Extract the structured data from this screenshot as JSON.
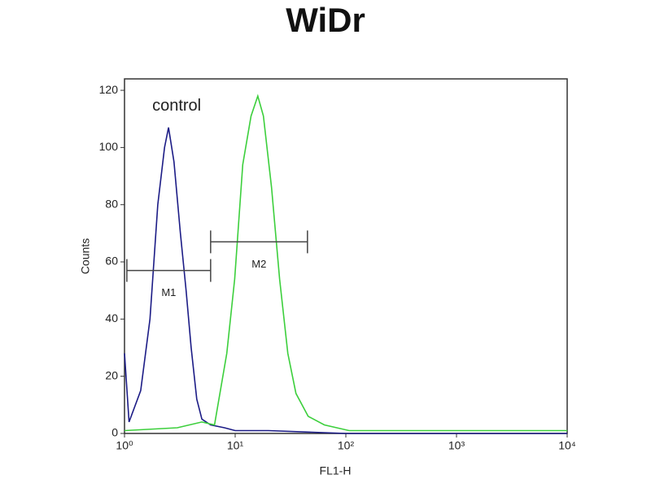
{
  "chart_data": {
    "type": "line",
    "title": "WiDr",
    "xlabel": "FL1-H",
    "ylabel": "Counts",
    "xscale": "log",
    "xlim": [
      1,
      10000
    ],
    "xticks": [
      {
        "value": 1,
        "label": "10⁰"
      },
      {
        "value": 10,
        "label": "10¹"
      },
      {
        "value": 100,
        "label": "10²"
      },
      {
        "value": 1000,
        "label": "10³"
      },
      {
        "value": 10000,
        "label": "10⁴"
      }
    ],
    "ylim": [
      0,
      124
    ],
    "yticks": [
      0,
      20,
      40,
      60,
      80,
      100,
      120
    ],
    "series": [
      {
        "name": "control",
        "color": "#1c1c86",
        "x": [
          1,
          1.1,
          1.4,
          1.7,
          2,
          2.3,
          2.5,
          2.8,
          3.2,
          3.6,
          4,
          4.5,
          5,
          6,
          8,
          10,
          20,
          100,
          10000
        ],
        "values": [
          28,
          4,
          15,
          40,
          80,
          100,
          107,
          95,
          70,
          50,
          30,
          12,
          5,
          3,
          2,
          1,
          1,
          0,
          0
        ]
      },
      {
        "color": "#3ccf3c",
        "x": [
          1,
          3,
          5,
          6.5,
          8.4,
          9.9,
          11.7,
          13.9,
          16,
          18,
          21.3,
          25.2,
          29.9,
          35.4,
          45.7,
          64,
          107,
          1000,
          10000
        ],
        "values": [
          1,
          2,
          4,
          3,
          28,
          54,
          94,
          111,
          118,
          111,
          86,
          54,
          28,
          14,
          6,
          3,
          1,
          1,
          1
        ]
      }
    ],
    "markers": [
      {
        "label": "M1",
        "range": [
          1.05,
          6
        ],
        "y": 57
      },
      {
        "label": "M2",
        "range": [
          6,
          45
        ],
        "y": 67
      }
    ]
  }
}
